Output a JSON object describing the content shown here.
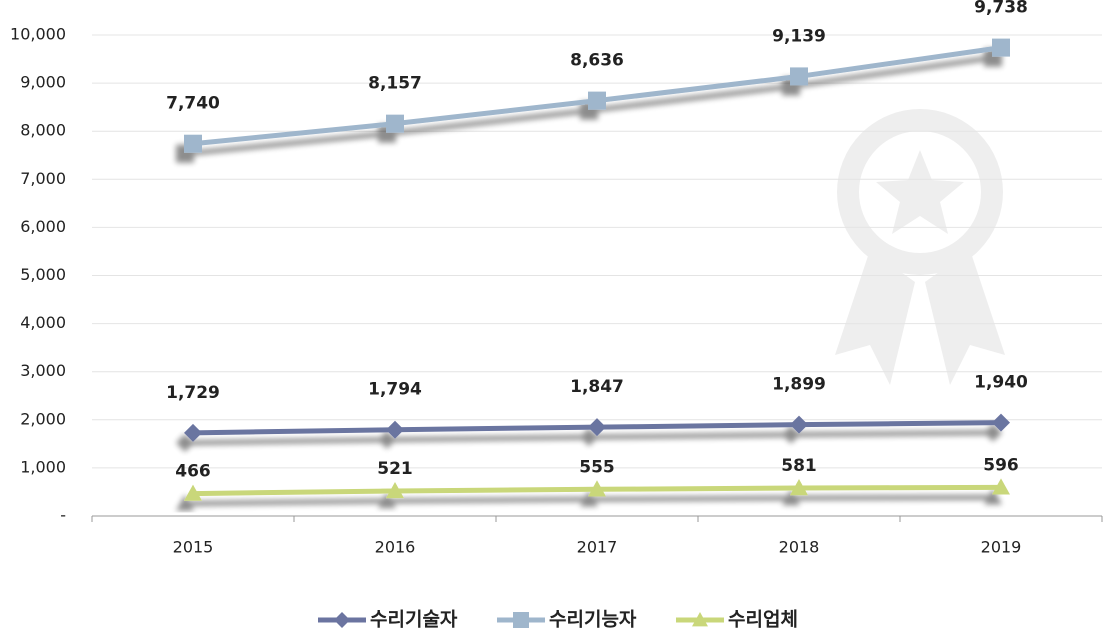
{
  "chart_data": {
    "type": "line",
    "categories": [
      "2015",
      "2016",
      "2017",
      "2018",
      "2019"
    ],
    "series": [
      {
        "name": "수리기술자",
        "color": "#6b74a0",
        "marker": "diamond",
        "values": [
          1729,
          1794,
          1847,
          1899,
          1940
        ],
        "value_labels": [
          "1,729",
          "1,794",
          "1,847",
          "1,899",
          "1,940"
        ]
      },
      {
        "name": "수리기능자",
        "color": "#9fb6cc",
        "marker": "square",
        "values": [
          7740,
          8157,
          8636,
          9139,
          9738
        ],
        "value_labels": [
          "7,740",
          "8,157",
          "8,636",
          "9,139",
          "9,738"
        ]
      },
      {
        "name": "수리업체",
        "color": "#c9d77a",
        "marker": "triangle",
        "values": [
          466,
          521,
          555,
          581,
          596
        ],
        "value_labels": [
          "466",
          "521",
          "555",
          "581",
          "596"
        ]
      }
    ],
    "ylim": [
      0,
      10000
    ],
    "yticks": [
      {
        "value": 0,
        "label": "-"
      },
      {
        "value": 1000,
        "label": "1,000"
      },
      {
        "value": 2000,
        "label": "2,000"
      },
      {
        "value": 3000,
        "label": "3,000"
      },
      {
        "value": 4000,
        "label": "4,000"
      },
      {
        "value": 5000,
        "label": "5,000"
      },
      {
        "value": 6000,
        "label": "6,000"
      },
      {
        "value": 7000,
        "label": "7,000"
      },
      {
        "value": 8000,
        "label": "8,000"
      },
      {
        "value": 9000,
        "label": "9,000"
      },
      {
        "value": 10000,
        "label": "10,000"
      }
    ],
    "grid": true,
    "legend": "bottom"
  }
}
